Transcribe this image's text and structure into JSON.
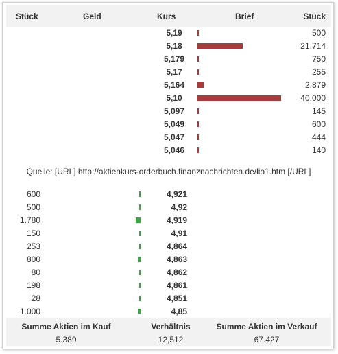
{
  "header": {
    "stueck_left": "Stück",
    "geld": "Geld",
    "kurs": "Kurs",
    "brief": "Brief",
    "stueck_right": "Stück"
  },
  "colors": {
    "ask_bar": "#a83b3b",
    "bid_bar": "#3fa046"
  },
  "asks": [
    {
      "price": "5,19",
      "qty": "500",
      "share": 500
    },
    {
      "price": "5,18",
      "qty": "21.714",
      "share": 21714
    },
    {
      "price": "5,179",
      "qty": "750",
      "share": 750
    },
    {
      "price": "5,17",
      "qty": "255",
      "share": 255
    },
    {
      "price": "5,164",
      "qty": "2.879",
      "share": 2879
    },
    {
      "price": "5,10",
      "qty": "40.000",
      "share": 40000
    },
    {
      "price": "5,097",
      "qty": "145",
      "share": 145
    },
    {
      "price": "5,049",
      "qty": "600",
      "share": 600
    },
    {
      "price": "5,047",
      "qty": "444",
      "share": 444
    },
    {
      "price": "5,046",
      "qty": "140",
      "share": 140
    }
  ],
  "source": "Quelle: [URL] http://aktienkurs-orderbuch.finanznachrichten.de/lio1.htm [/URL]",
  "bids": [
    {
      "qty": "600",
      "price": "4,921",
      "share": 600
    },
    {
      "qty": "500",
      "price": "4,92",
      "share": 500
    },
    {
      "qty": "1.780",
      "price": "4,919",
      "share": 1780
    },
    {
      "qty": "150",
      "price": "4,91",
      "share": 150
    },
    {
      "qty": "253",
      "price": "4,864",
      "share": 253
    },
    {
      "qty": "800",
      "price": "4,863",
      "share": 800
    },
    {
      "qty": "80",
      "price": "4,862",
      "share": 80
    },
    {
      "qty": "198",
      "price": "4,861",
      "share": 198
    },
    {
      "qty": "28",
      "price": "4,851",
      "share": 28
    },
    {
      "qty": "1.000",
      "price": "4,85",
      "share": 1000
    }
  ],
  "footer": {
    "kauf_label": "Summe Aktien im Kauf",
    "kauf_value": "5.389",
    "ratio_label": "Verhältnis",
    "ratio_value": "12,512",
    "verkauf_label": "Summe Aktien im Verkauf",
    "verkauf_value": "67.427"
  }
}
